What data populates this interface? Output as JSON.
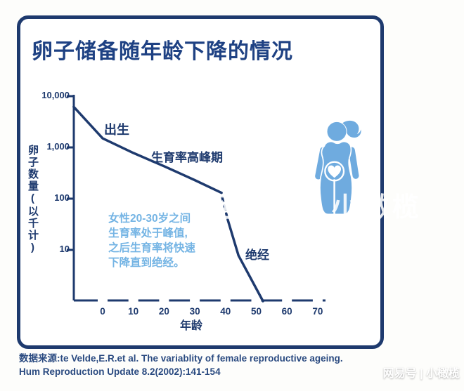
{
  "title": "卵子储备随年龄下降的情况",
  "chart_data": {
    "type": "line",
    "title": "卵子储备随年龄下降的情况",
    "xlabel": "年龄",
    "ylabel": "卵子数量(以千计)",
    "x_axis": {
      "ticks": [
        0,
        10,
        20,
        30,
        40,
        50,
        60,
        70
      ],
      "range": [
        -10,
        72
      ]
    },
    "y_axis": {
      "scale": "log",
      "range": [
        1,
        10000
      ],
      "ticks": [
        {
          "value": 10000,
          "label": "10,000"
        },
        {
          "value": 1000,
          "label": "1,000"
        },
        {
          "value": 100,
          "label": "100"
        },
        {
          "value": 10,
          "label": "10"
        }
      ]
    },
    "grid": false,
    "series": [
      {
        "name": "egg-reserve-prebirth-to-38",
        "style": "solid",
        "points": [
          {
            "age": -9.4,
            "value": 6200
          },
          {
            "age": 0,
            "value": 1500
          },
          {
            "age": 10,
            "value": 780
          },
          {
            "age": 20,
            "value": 430
          },
          {
            "age": 30,
            "value": 230
          },
          {
            "age": 38.7,
            "value": 130
          }
        ]
      },
      {
        "name": "egg-reserve-rapid-decline-dashed",
        "style": "dashed",
        "points": [
          {
            "age": 38.9,
            "value": 107
          },
          {
            "age": 40.7,
            "value": 39
          }
        ]
      },
      {
        "name": "egg-reserve-to-menopause",
        "style": "solid",
        "points": [
          {
            "age": 40.7,
            "value": 39
          },
          {
            "age": 44.2,
            "value": 7.8
          },
          {
            "age": 52.2,
            "value": 1
          }
        ]
      }
    ],
    "annotations": {
      "birth": "出生",
      "peak": "生育率高峰期",
      "menopause": "绝经",
      "note": "女性20-30岁之间\n生育率处于峰值,\n之后生育率将快速\n下降直到绝经。"
    }
  },
  "source": "数据来源:te Velde,E.R.et al. The variablity of female reproductive ageing.\nHum Reproduction Update 8.2(2002):141-154",
  "watermark": {
    "mid": "网易号 | 小橄榄",
    "bottom": "网易号 | 小橄榄"
  },
  "colors": {
    "navy": "#1e3a6e",
    "title_navy": "#1e4183",
    "figure_blue": "#6fabdf",
    "note_blue": "#74b4e4",
    "background": "#ffffff"
  },
  "figure": {
    "name": "pregnant-woman-illustration"
  }
}
